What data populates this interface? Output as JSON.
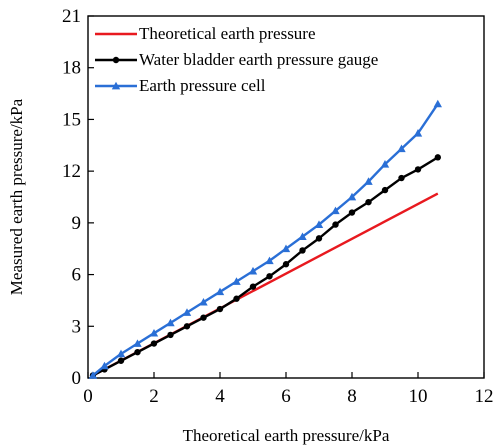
{
  "chart_data": {
    "type": "line",
    "title": "",
    "xlabel": "Theoretical earth pressure/kPa",
    "ylabel": "Measured earth pressure/kPa",
    "xlim": [
      0,
      12
    ],
    "ylim": [
      0,
      21
    ],
    "xticks": [
      0,
      2,
      4,
      6,
      8,
      10,
      12
    ],
    "yticks": [
      0,
      3,
      6,
      9,
      12,
      15,
      18,
      21
    ],
    "grid": false,
    "legend_position": "top-left",
    "series": [
      {
        "name": "Theoretical earth pressure",
        "color": "#e8191f",
        "marker": "none",
        "x": [
          0.15,
          10.6
        ],
        "y": [
          0.15,
          10.7
        ]
      },
      {
        "name": "Water bladder earth pressure gauge",
        "color": "#000000",
        "marker": "circle",
        "x": [
          0.15,
          0.5,
          1.0,
          1.5,
          2.0,
          2.5,
          3.0,
          3.5,
          4.0,
          4.5,
          5.0,
          5.5,
          6.0,
          6.5,
          7.0,
          7.5,
          8.0,
          8.5,
          9.0,
          9.5,
          10.0,
          10.6
        ],
        "y": [
          0.15,
          0.5,
          1.0,
          1.5,
          2.0,
          2.5,
          3.0,
          3.5,
          4.0,
          4.6,
          5.3,
          5.9,
          6.6,
          7.4,
          8.1,
          8.9,
          9.6,
          10.2,
          10.9,
          11.6,
          12.1,
          12.8
        ]
      },
      {
        "name": "Earth pressure cell",
        "color": "#2a6fd6",
        "marker": "triangle",
        "x": [
          0.15,
          0.5,
          1.0,
          1.5,
          2.0,
          2.5,
          3.0,
          3.5,
          4.0,
          4.5,
          5.0,
          5.5,
          6.0,
          6.5,
          7.0,
          7.5,
          8.0,
          8.5,
          9.0,
          9.5,
          10.0,
          10.6
        ],
        "y": [
          0.15,
          0.7,
          1.4,
          2.0,
          2.6,
          3.2,
          3.8,
          4.4,
          5.0,
          5.6,
          6.2,
          6.8,
          7.5,
          8.2,
          8.9,
          9.7,
          10.5,
          11.4,
          12.4,
          13.3,
          14.2,
          15.9
        ]
      }
    ]
  }
}
